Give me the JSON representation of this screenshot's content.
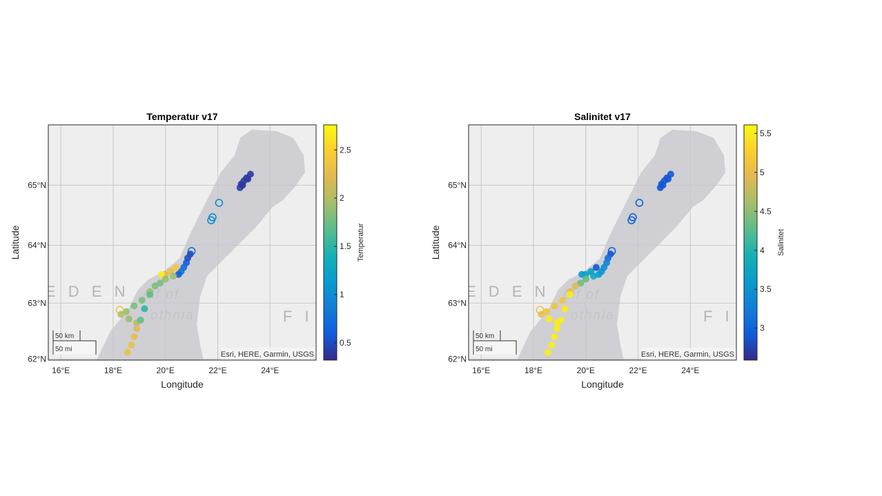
{
  "chart_data": [
    {
      "type": "scatter",
      "title": "Temperatur v17",
      "xlabel": "Longitude",
      "ylabel": "Latitude",
      "xlim": [
        15.52,
        25.76
      ],
      "ylim": [
        61.98,
        65.97
      ],
      "xticks": [
        16,
        18,
        20,
        22,
        24
      ],
      "xtick_labels": [
        "16°E",
        "18°E",
        "20°E",
        "22°E",
        "24°E"
      ],
      "yticks": [
        62,
        63,
        64,
        65
      ],
      "ytick_labels": [
        "62°N",
        "63°N",
        "64°N",
        "65°N"
      ],
      "grid": true,
      "colorbar": {
        "label": "Temperatur",
        "clim": [
          0.32,
          2.76
        ],
        "ticks": [
          0.5,
          1,
          1.5,
          2,
          2.5
        ],
        "tick_labels": [
          "0.5",
          "1",
          "1.5",
          "2",
          "2.5"
        ],
        "colormap": "parula"
      },
      "value_field": "temp"
    },
    {
      "type": "scatter",
      "title": "Salinitet v17",
      "xlabel": "Longitude",
      "ylabel": "Latitude",
      "xlim": [
        15.52,
        25.76
      ],
      "ylim": [
        61.98,
        65.97
      ],
      "xticks": [
        16,
        18,
        20,
        22,
        24
      ],
      "xtick_labels": [
        "16°E",
        "18°E",
        "20°E",
        "22°E",
        "24°E"
      ],
      "yticks": [
        62,
        63,
        64,
        65
      ],
      "ytick_labels": [
        "62°N",
        "63°N",
        "64°N",
        "65°N"
      ],
      "grid": true,
      "colorbar": {
        "label": "Salinitet",
        "clim": [
          2.59,
          5.61
        ],
        "ticks": [
          3,
          3.5,
          4,
          4.5,
          5,
          5.5
        ],
        "tick_labels": [
          "3",
          "3.5",
          "4",
          "4.5",
          "5",
          "5.5"
        ],
        "colormap": "parula"
      },
      "value_field": "sal"
    }
  ],
  "points_fields": [
    "lon",
    "lat",
    "temp",
    "sal",
    "filled"
  ],
  "points": [
    [
      22.85,
      64.96,
      0.45,
      2.9,
      1
    ],
    [
      22.9,
      65.02,
      0.4,
      2.9,
      1
    ],
    [
      22.95,
      65.0,
      0.4,
      2.9,
      1
    ],
    [
      23.0,
      65.07,
      0.4,
      2.9,
      1
    ],
    [
      23.1,
      65.12,
      0.4,
      2.9,
      1
    ],
    [
      23.15,
      65.1,
      0.4,
      2.9,
      1
    ],
    [
      23.25,
      65.18,
      0.4,
      2.9,
      1
    ],
    [
      22.05,
      64.71,
      1.0,
      3.0,
      0
    ],
    [
      21.8,
      64.47,
      1.0,
      3.0,
      0
    ],
    [
      21.75,
      64.42,
      1.0,
      3.0,
      0
    ],
    [
      21.0,
      63.9,
      0.8,
      3.0,
      0
    ],
    [
      20.95,
      63.85,
      0.5,
      2.9,
      1
    ],
    [
      20.85,
      63.78,
      0.5,
      3.1,
      1
    ],
    [
      20.8,
      63.7,
      0.6,
      3.3,
      1
    ],
    [
      20.7,
      63.62,
      0.7,
      3.4,
      1
    ],
    [
      20.6,
      63.55,
      0.8,
      3.5,
      1
    ],
    [
      20.5,
      63.5,
      0.6,
      3.6,
      1
    ],
    [
      20.4,
      63.62,
      2.4,
      2.9,
      1
    ],
    [
      20.2,
      63.55,
      2.3,
      3.6,
      1
    ],
    [
      20.0,
      63.5,
      2.2,
      3.7,
      1
    ],
    [
      19.85,
      63.5,
      2.7,
      3.6,
      1
    ],
    [
      20.3,
      63.47,
      1.9,
      3.8,
      1
    ],
    [
      20.0,
      63.42,
      1.9,
      4.3,
      1
    ],
    [
      19.8,
      63.35,
      1.8,
      4.4,
      1
    ],
    [
      19.6,
      63.3,
      1.8,
      4.9,
      1
    ],
    [
      19.4,
      63.2,
      1.9,
      5.0,
      1
    ],
    [
      19.1,
      63.05,
      1.8,
      5.1,
      1
    ],
    [
      18.8,
      62.95,
      1.8,
      5.1,
      1
    ],
    [
      18.5,
      62.85,
      1.9,
      5.1,
      1
    ],
    [
      18.25,
      62.88,
      2.4,
      5.1,
      0
    ],
    [
      18.3,
      62.8,
      2.0,
      5.0,
      1
    ],
    [
      18.6,
      62.72,
      1.9,
      5.5,
      1
    ],
    [
      18.9,
      62.65,
      2.0,
      5.5,
      1
    ],
    [
      19.4,
      63.15,
      1.7,
      5.5,
      1
    ],
    [
      19.2,
      62.9,
      1.5,
      5.5,
      1
    ],
    [
      19.05,
      62.7,
      1.7,
      5.5,
      1
    ],
    [
      18.9,
      62.55,
      2.2,
      5.5,
      1
    ],
    [
      18.8,
      62.4,
      2.3,
      5.5,
      1
    ],
    [
      18.7,
      62.25,
      2.3,
      5.5,
      1
    ],
    [
      18.55,
      62.12,
      2.3,
      5.5,
      1
    ]
  ],
  "basemap": {
    "label_sweden": "E D E N",
    "label_gulf1": "ulf of",
    "label_gulf2": "othnia",
    "label_finland": "F I",
    "attribution": "Esri, HERE, Garmin, USGS",
    "scale_km": "50 km",
    "scale_mi": "50 mi",
    "land_color": "#eeeeee",
    "water_color": "#cfcfd4"
  }
}
